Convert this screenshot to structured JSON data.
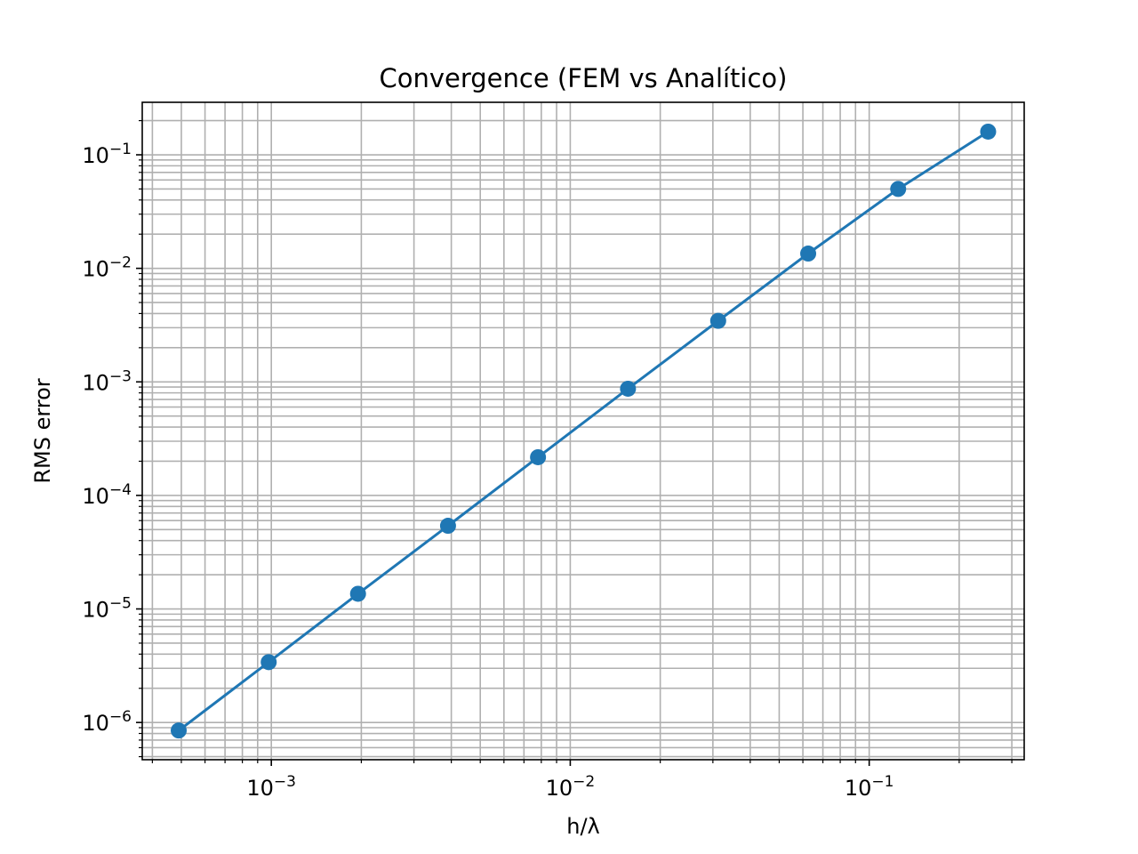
{
  "chart_data": {
    "type": "line",
    "title": "Convergence (FEM vs Analítico)",
    "xlabel": "h/λ",
    "ylabel": "RMS error",
    "xscale": "log",
    "yscale": "log",
    "xlim": [
      0.00037,
      0.33
    ],
    "ylim": [
      4.7e-07,
      0.29
    ],
    "grid": "both",
    "x_ticks": [
      {
        "value": 0.001,
        "base": "10",
        "exp": "−3"
      },
      {
        "value": 0.01,
        "base": "10",
        "exp": "−2"
      },
      {
        "value": 0.1,
        "base": "10",
        "exp": "−1"
      }
    ],
    "y_ticks": [
      {
        "value": 1e-06,
        "base": "10",
        "exp": "−6"
      },
      {
        "value": 1e-05,
        "base": "10",
        "exp": "−5"
      },
      {
        "value": 0.0001,
        "base": "10",
        "exp": "−4"
      },
      {
        "value": 0.001,
        "base": "10",
        "exp": "−3"
      },
      {
        "value": 0.01,
        "base": "10",
        "exp": "−2"
      },
      {
        "value": 0.1,
        "base": "10",
        "exp": "−1"
      }
    ],
    "series": [
      {
        "color": "#1f77b4",
        "marker": "circle",
        "x": [
          0.00049,
          0.00098,
          0.00195,
          0.0039,
          0.0078,
          0.0156,
          0.03125,
          0.0625,
          0.125,
          0.25
        ],
        "y": [
          8.5e-07,
          3.4e-06,
          1.36e-05,
          5.4e-05,
          0.000217,
          0.00087,
          0.00345,
          0.0135,
          0.05,
          0.16
        ]
      }
    ]
  }
}
